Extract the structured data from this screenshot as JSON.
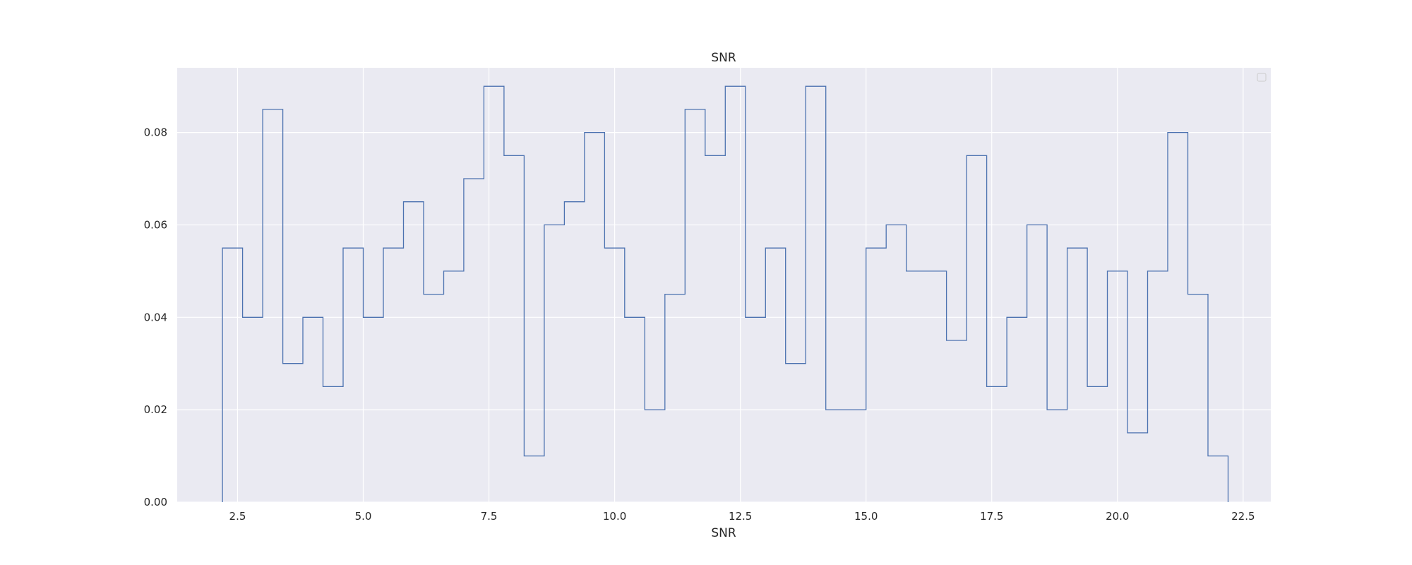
{
  "chart_data": {
    "type": "histogram-step",
    "title": "SNR",
    "xlabel": "SNR",
    "ylabel": "",
    "xlim": [
      1.3,
      23.05
    ],
    "ylim": [
      0,
      0.094
    ],
    "xticks": [
      2.5,
      5.0,
      7.5,
      10.0,
      12.5,
      15.0,
      17.5,
      20.0,
      22.5
    ],
    "xtick_labels": [
      "2.5",
      "5.0",
      "7.5",
      "10.0",
      "12.5",
      "15.0",
      "17.5",
      "20.0",
      "22.5"
    ],
    "yticks": [
      0,
      0.02,
      0.04,
      0.06,
      0.08
    ],
    "ytick_labels": [
      "0.00",
      "0.02",
      "0.04",
      "0.06",
      "0.08"
    ],
    "grid": true,
    "legend": "top-right (empty)",
    "line_color": "#4c72b0",
    "background_color": "#eaeaf2",
    "grid_color": "#ffffff",
    "bin_edges": [
      2.2,
      2.6,
      3.0,
      3.4,
      3.8,
      4.2,
      4.6,
      5.0,
      5.4,
      5.8,
      6.2,
      6.6,
      7.0,
      7.4,
      7.8,
      8.2,
      8.6,
      9.0,
      9.4,
      9.8,
      10.2,
      10.6,
      11.0,
      11.4,
      11.8,
      12.2,
      12.6,
      13.0,
      13.4,
      13.8,
      14.2,
      14.6,
      15.0,
      15.4,
      15.8,
      16.2,
      16.6,
      17.0,
      17.4,
      17.8,
      18.2,
      18.6,
      19.0,
      19.4,
      19.8,
      20.2,
      20.6,
      21.0,
      21.4,
      21.8,
      22.2
    ],
    "values": [
      0.055,
      0.04,
      0.085,
      0.03,
      0.04,
      0.025,
      0.055,
      0.04,
      0.055,
      0.065,
      0.045,
      0.05,
      0.07,
      0.09,
      0.075,
      0.01,
      0.06,
      0.065,
      0.08,
      0.055,
      0.04,
      0.02,
      0.045,
      0.085,
      0.075,
      0.09,
      0.04,
      0.055,
      0.03,
      0.09,
      0.02,
      0.02,
      0.055,
      0.06,
      0.05,
      0.05,
      0.035,
      0.075,
      0.025,
      0.04,
      0.06,
      0.02,
      0.055,
      0.025,
      0.05,
      0.015,
      0.05,
      0.08,
      0.045,
      0.01
    ]
  }
}
